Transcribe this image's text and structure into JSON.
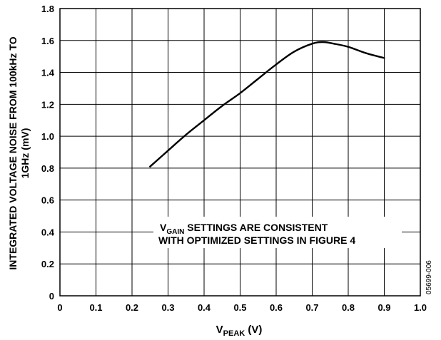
{
  "chart_data": {
    "type": "line",
    "title": "",
    "xlabel": {
      "main": "V",
      "sub": "PEAK",
      "tail": " (V)"
    },
    "ylabel": {
      "line1": "INTEGRATED VOLTAGE NOISE FROM 100kHz TO",
      "line2": "1GHz (mV)"
    },
    "xlim": [
      0,
      1.0
    ],
    "ylim": [
      0,
      1.8
    ],
    "xticks": [
      0,
      0.1,
      0.2,
      0.3,
      0.4,
      0.5,
      0.6,
      0.7,
      0.8,
      0.9,
      1.0
    ],
    "xtick_labels": [
      "0",
      "0.1",
      "0.2",
      "0.3",
      "0.4",
      "0.5",
      "0.6",
      "0.7",
      "0.8",
      "0.9",
      "1.0"
    ],
    "yticks": [
      0,
      0.2,
      0.4,
      0.6,
      0.8,
      1.0,
      1.2,
      1.4,
      1.6,
      1.8
    ],
    "ytick_labels": [
      "0",
      "0.2",
      "0.4",
      "0.6",
      "0.8",
      "1.0",
      "1.2",
      "1.4",
      "1.6",
      "1.8"
    ],
    "grid": true,
    "series": [
      {
        "x": [
          0.25,
          0.3,
          0.35,
          0.4,
          0.45,
          0.5,
          0.55,
          0.6,
          0.65,
          0.7,
          0.73,
          0.76,
          0.8,
          0.85,
          0.9
        ],
        "y": [
          0.81,
          0.91,
          1.01,
          1.1,
          1.19,
          1.27,
          1.36,
          1.45,
          1.53,
          1.58,
          1.59,
          1.58,
          1.56,
          1.52,
          1.49
        ],
        "color": "#000000"
      }
    ],
    "annotation": {
      "line1_v": "V",
      "line1_sub": "GAIN",
      "line1_rest": " SETTINGS ARE CONSISTENT",
      "line2": "WITH OPTIMIZED SETTINGS IN FIGURE 4"
    },
    "figure_id": "05699-006"
  }
}
